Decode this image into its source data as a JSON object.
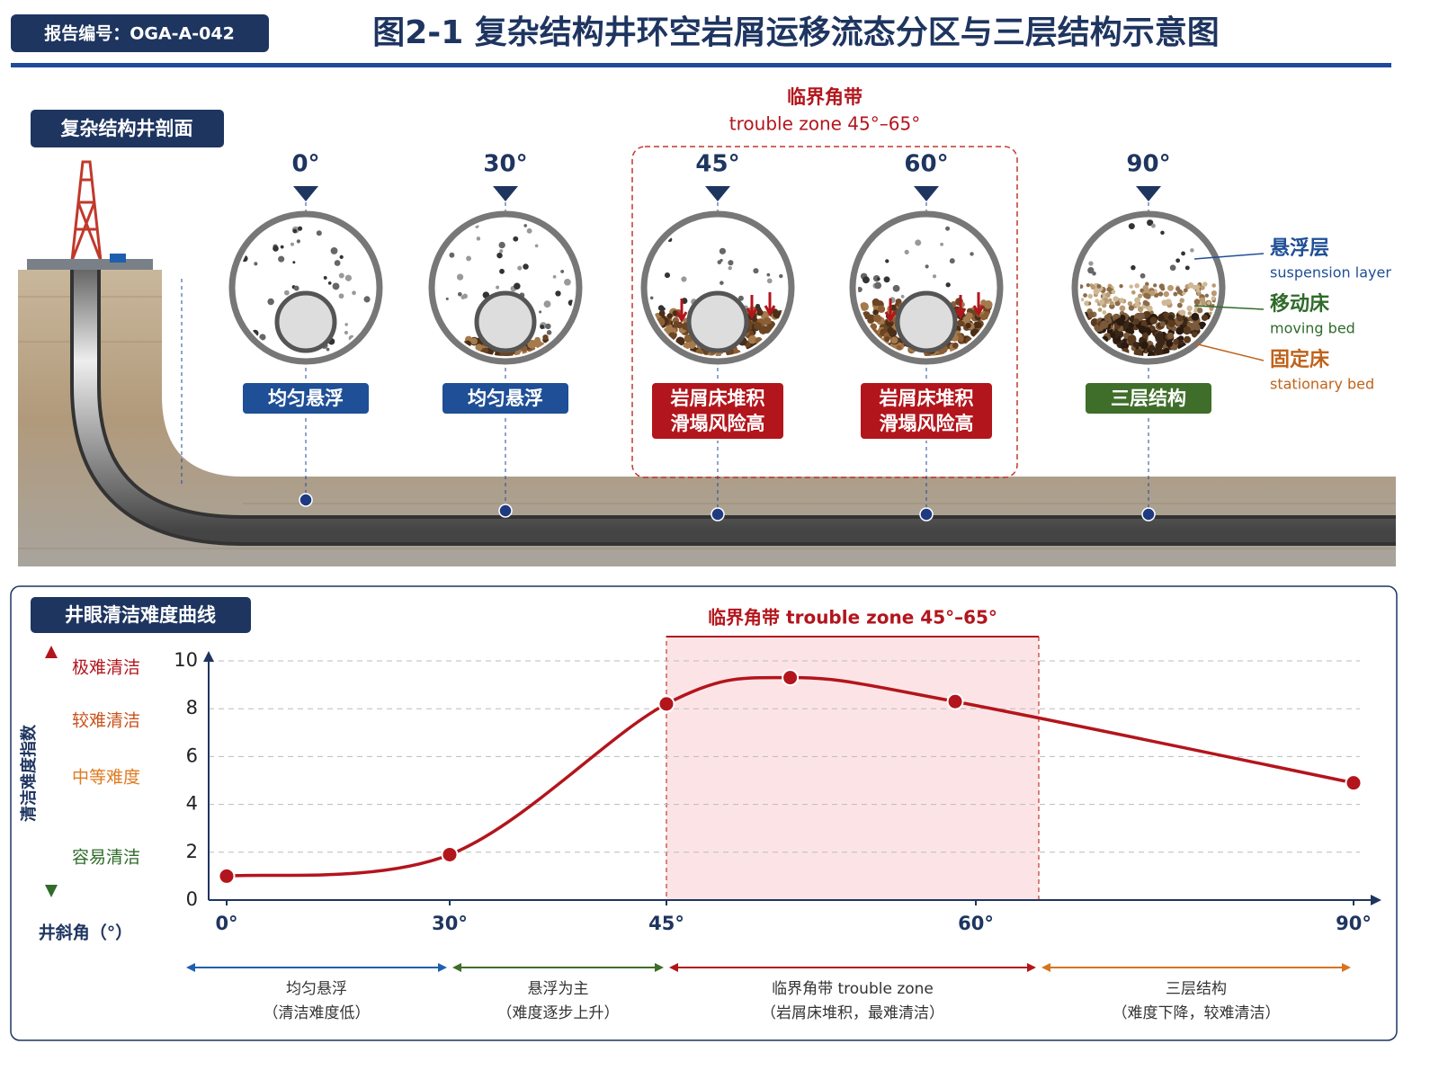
{
  "header": {
    "report_no": "报告编号：OGA-A-042",
    "title": "图2-1 复杂结构井环空岩屑运移流态分区与三层结构示意图"
  },
  "profile": {
    "section_label": "复杂结构井剖面",
    "zone_title": "临界角带",
    "zone_subtitle": "trouble zone 45°–65°",
    "sections": [
      {
        "angle": "0°",
        "status": [
          "均匀悬浮"
        ],
        "color": "#1f4f96"
      },
      {
        "angle": "30°",
        "status": [
          "均匀悬浮"
        ],
        "color": "#1f4f96"
      },
      {
        "angle": "45°",
        "status": [
          "岩屑床堆积",
          "滑塌风险高"
        ],
        "color": "#b3151c"
      },
      {
        "angle": "60°",
        "status": [
          "岩屑床堆积",
          "滑塌风险高"
        ],
        "color": "#b3151c"
      },
      {
        "angle": "90°",
        "status": [
          "三层结构"
        ],
        "color": "#3f6e2a"
      }
    ],
    "legend": [
      {
        "name": "悬浮层",
        "name_en": "suspension layer",
        "color": "#1f4f96"
      },
      {
        "name": "移动床",
        "name_en": "moving bed",
        "color": "#2f6b2a"
      },
      {
        "name": "固定床",
        "name_en": "stationary bed",
        "color": "#c0621a"
      }
    ]
  },
  "chart_data": {
    "type": "line",
    "section_label": "井眼清洁难度曲线",
    "y_label": "清洁难度指数",
    "x_label": "井斜角（°）",
    "difficulty_levels": [
      "极难清洁",
      "较难清洁",
      "中等难度",
      "容易清洁"
    ],
    "x": [
      0,
      30,
      45,
      51,
      59,
      90
    ],
    "series": [
      {
        "color": "#b3151c",
        "values": [
          1.0,
          1.9,
          8.2,
          9.3,
          8.3,
          4.9
        ]
      }
    ],
    "xlim": [
      0,
      90
    ],
    "xticks": [
      {
        "value": 0,
        "label": "0°"
      },
      {
        "value": 30,
        "label": "30°"
      },
      {
        "value": 45,
        "label": "45°"
      },
      {
        "value": 60,
        "label": "60°"
      },
      {
        "value": 90,
        "label": "90°"
      }
    ],
    "ylim": [
      0,
      10
    ],
    "yticks": [
      0,
      2,
      4,
      6,
      8,
      10
    ],
    "grid": true,
    "zone": {
      "label": "临界角带  trouble zone 45°–65°",
      "start": 45,
      "end": 65,
      "color": "#fce4e6"
    },
    "phases": [
      {
        "title": "均匀悬浮",
        "note": "（清洁难度低）",
        "start": 0,
        "end": 30,
        "color": "#1f5fb0"
      },
      {
        "title": "悬浮为主",
        "note": "（难度逐步上升）",
        "start": 30,
        "end": 45,
        "color": "#3f6e2a"
      },
      {
        "title": "临界角带  trouble zone",
        "note": "（岩屑床堆积，最难清洁）",
        "start": 45,
        "end": 65,
        "color": "#b3151c"
      },
      {
        "title": "三层结构",
        "note": "（难度下降，较难清洁）",
        "start": 65,
        "end": 90,
        "color": "#d8731f"
      }
    ]
  }
}
